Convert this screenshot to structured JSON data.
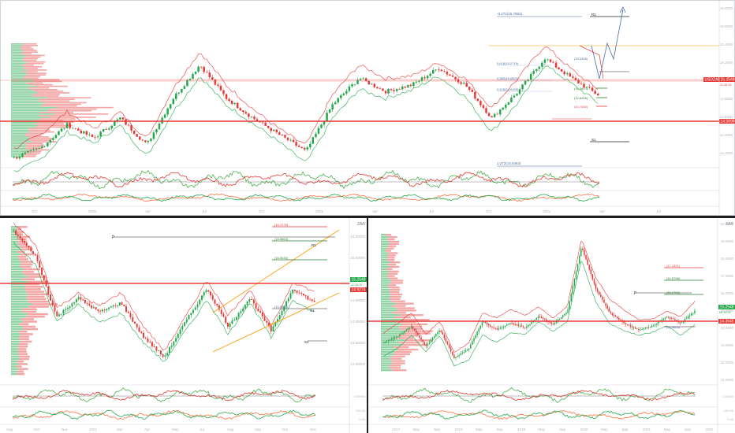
{
  "colors": {
    "bull": "#22a84a",
    "bear": "#e53935",
    "resistance": "#e53935",
    "support": "#2e7d32",
    "arrow": "#4a6fa5",
    "pivot": "#222222",
    "rsi": "#4caf50",
    "grid": "#eceff1"
  },
  "top_chart": {
    "symbol_badge": "USDZAR",
    "price_badge": "15.2548",
    "price_badge_sub": "11:26:15",
    "level_badge": "14.5698",
    "time_labels": [
      "Oct",
      "2020",
      "Apr",
      "Jul",
      "Oct",
      "2021",
      "Apr",
      "Jul",
      "Oct",
      "2022",
      "Apr",
      "Jul"
    ],
    "fib_top": "-0.272(15.7952)",
    "fib_bottom": "1.272(14.5463)",
    "fib_mid_1": "0.618(15.2715)",
    "fib_mid_2": "0.382(15.0524)",
    "fib_mid_3": "0.618(14.9155)",
    "level_r1": "R1",
    "level_s1": "S1",
    "tp_1": "(14.9617)",
    "tp_2": "(14.8406)",
    "tp_3": "(14.7492)",
    "zone_label": "(15.2548)",
    "price_axis": [
      "15.8000",
      "15.6000",
      "15.4000",
      "15.2000",
      "15.0000",
      "14.8000",
      "14.6000",
      "14.4000",
      "14.2000"
    ]
  },
  "bottom_left_chart": {
    "currency": "ZAR",
    "price_badge": "15.2548",
    "price_badge_sub": "11:26:15",
    "level_badge": "14.9274",
    "level_labels": [
      "(16.2278)",
      "(15.8863)",
      "(15.5030)",
      "(14.9865)"
    ],
    "pivot_p": "P",
    "level_r1": "R1",
    "level_s1": "S1",
    "level_s2": "S2",
    "price_axis": [
      "16.00000",
      "15.50000",
      "15.00000",
      "14.50000",
      "14.00000",
      "13.50000",
      "13.00000"
    ],
    "time_labels": [
      "Aug",
      "Oct",
      "Nov",
      "2021",
      "Mar",
      "Apr",
      "May",
      "Jul",
      "Aug",
      "Sep",
      "Oct",
      "Dec"
    ],
    "osc_axis": [
      "0.00000"
    ],
    "osc_axis_2": [
      "100.00",
      "0.00"
    ]
  },
  "bottom_right_chart": {
    "currency": "ZAR",
    "price_badge": "15.2548",
    "price_badge_sub": "69:16:52",
    "level_badge": "14.3645",
    "level_labels": [
      "(17.1321)",
      "(16.5768)",
      "(15.9782)",
      "(14.9866)"
    ],
    "pivot_p": "P",
    "price_axis": [
      "20.0000",
      "19.0000",
      "18.0000",
      "17.0000",
      "16.0000",
      "15.0000",
      "14.0000",
      "13.0000",
      "12.0000",
      "11.0000"
    ],
    "time_labels": [
      "2017",
      "May",
      "Sep",
      "2018",
      "May",
      "Sep",
      "2019",
      "May",
      "Sep",
      "2020",
      "May",
      "Sep",
      "2021",
      "May",
      "Sep",
      "2022"
    ],
    "osc_axis": [
      "0.00000"
    ],
    "osc_axis_2": [
      "100.00",
      "0.00"
    ]
  }
}
